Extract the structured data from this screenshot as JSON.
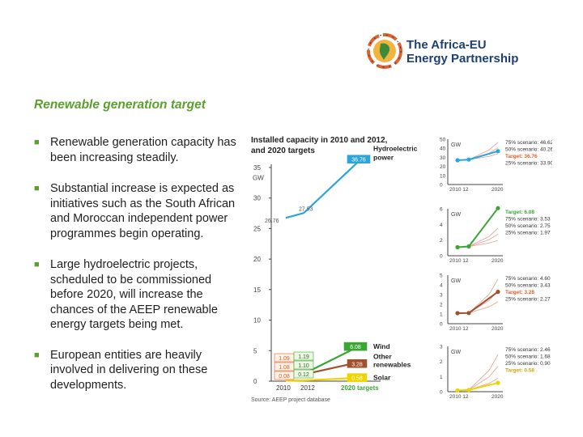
{
  "logo": {
    "line1": "The Africa-EU",
    "line2": "Energy Partnership"
  },
  "title": "Renewable generation target",
  "bullets": [
    "Renewable generation capacity has been increasing steadily.",
    "Substantial increase is expected as initiatives such as the South African and Moroccan independent power programmes begin operating.",
    "Large hydroelectric projects, scheduled to be commissioned before 2020, will increase the chances of the AEEP renewable energy targets being met.",
    "European entities are heavily involved in delivering on these developments."
  ],
  "colors": {
    "hydro": "#2aa6dd",
    "wind": "#3aa735",
    "other": "#a0522d",
    "solar": "#f0d400",
    "title": "#5aa02c",
    "logo": "#1f3f73"
  },
  "chart_data": [
    {
      "type": "line",
      "title": "Installed capacity in 2010 and 2012, and 2020 targets",
      "ylabel": "GW",
      "ylim": [
        0,
        35
      ],
      "yticks": [
        "0",
        "5",
        "10",
        "15",
        "20",
        "25",
        "30",
        "35"
      ],
      "x": [
        "2010",
        "2012",
        "2020 targets"
      ],
      "series": [
        {
          "name": "Hydroelectric power",
          "values": [
            26.76,
            27.53,
            36.76
          ],
          "labels": [
            "26.76",
            "27.53",
            "36.76"
          ]
        },
        {
          "name": "Wind",
          "values": [
            1.09,
            1.19,
            6.08
          ],
          "labels": [
            "1.09",
            "1.19",
            "6.08"
          ]
        },
        {
          "name": "Other renewables",
          "values": [
            1.08,
            1.1,
            3.28
          ],
          "labels": [
            "1.08",
            "1.10",
            "3.28"
          ]
        },
        {
          "name": "Solar",
          "values": [
            0.08,
            0.12,
            0.58
          ],
          "labels": [
            "0.08",
            "0.12",
            "0.58"
          ]
        }
      ],
      "source": "Source: AEEP project database"
    },
    {
      "type": "line",
      "series_name": "Hydroelectric power",
      "ylabel": "GW",
      "ylim": [
        0,
        50
      ],
      "yticks": [
        "0",
        "10",
        "20",
        "30",
        "40",
        "50"
      ],
      "xlabels": [
        "2010 12",
        "2020"
      ],
      "values": [
        26.76,
        27.53,
        36.76
      ],
      "scenarios": [
        "75% scenario: 46.62",
        "50% scenario: 40.26",
        "Target: 36.76",
        "25% scenario: 33.90"
      ],
      "scenario_values": [
        46.62,
        40.26,
        33.9
      ],
      "target": 36.76
    },
    {
      "type": "line",
      "series_name": "Wind",
      "ylabel": "GW",
      "ylim": [
        0,
        6
      ],
      "yticks": [
        "0",
        "2",
        "4",
        "6"
      ],
      "xlabels": [
        "2010 12",
        "2020"
      ],
      "values": [
        1.09,
        1.19,
        6.08
      ],
      "scenarios": [
        "Target: 6.08",
        "75% scenario: 3.53",
        "50% scenario: 2.75",
        "25% scenario: 1.97"
      ],
      "scenario_values": [
        3.53,
        2.75,
        1.97
      ],
      "target": 6.08
    },
    {
      "type": "line",
      "series_name": "Other renewables",
      "ylabel": "GW",
      "ylim": [
        0,
        5
      ],
      "yticks": [
        "0",
        "1",
        "2",
        "3",
        "4",
        "5"
      ],
      "xlabels": [
        "2010 12",
        "2020"
      ],
      "values": [
        1.08,
        1.1,
        3.28
      ],
      "scenarios": [
        "75% scenario: 4.60",
        "50% scenario: 3.43",
        "Target: 3.28",
        "25% scenario: 2.27"
      ],
      "scenario_values": [
        4.6,
        3.43,
        2.27
      ],
      "target": 3.28
    },
    {
      "type": "line",
      "series_name": "Solar",
      "ylabel": "GW",
      "ylim": [
        0,
        3
      ],
      "yticks": [
        "0",
        "1",
        "2",
        "3"
      ],
      "xlabels": [
        "2010 12",
        "2020"
      ],
      "values": [
        0.08,
        0.12,
        0.58
      ],
      "scenarios": [
        "75% scenario: 2.46",
        "50% scenario: 1.68",
        "25% scenario: 0.90",
        "Target: 0.58"
      ],
      "scenario_values": [
        2.46,
        1.68,
        0.9
      ],
      "target": 0.58
    }
  ]
}
